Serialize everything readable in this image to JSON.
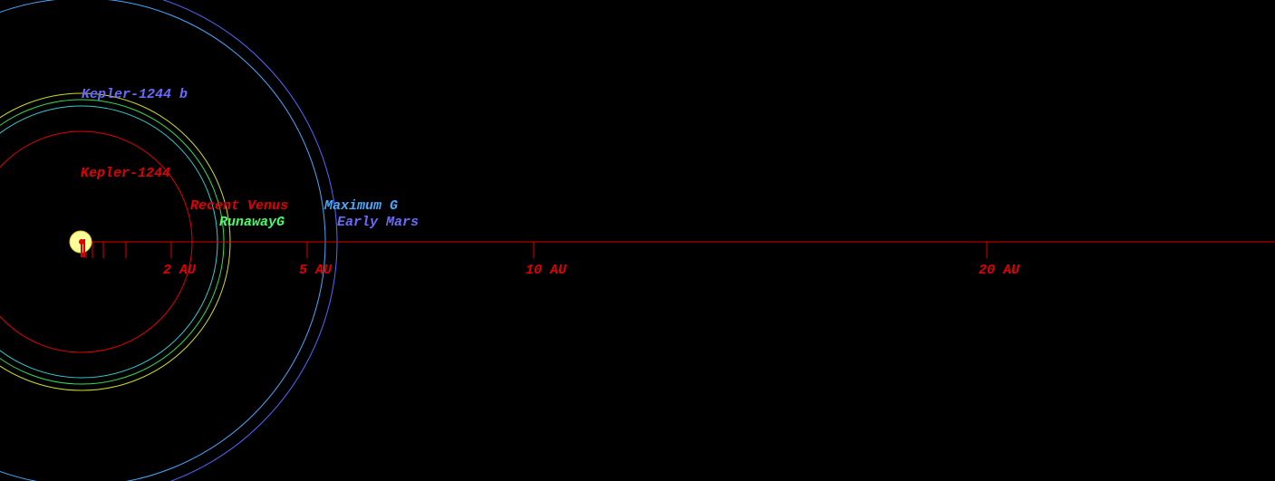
{
  "labels": {
    "planet": "Kepler-1244 b",
    "star": "Kepler-1244",
    "recent_venus": "Recent Venus",
    "runaway_greenhouse": "RunawayG",
    "maximum_greenhouse": "Maximum G",
    "early_mars": "Early Mars"
  },
  "scale": {
    "ticks": [
      "2 AU",
      "5 AU",
      "10 AU",
      "20 AU"
    ]
  }
}
